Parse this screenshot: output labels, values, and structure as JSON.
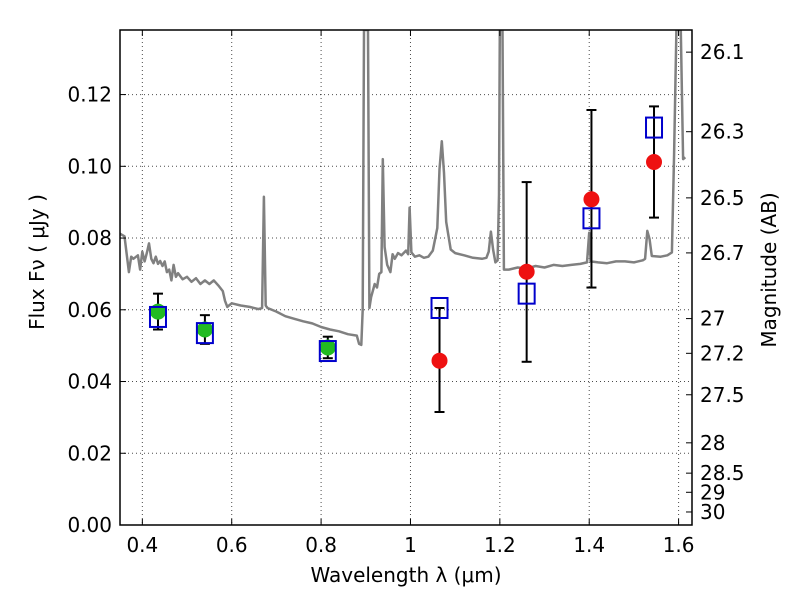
{
  "chart_data": {
    "type": "scatter",
    "xlabel": "Wavelength  λ (μm)",
    "ylabel": "Flux  Fν  ( μJy )",
    "y2label": "Magnitude (AB)",
    "xlim": [
      0.35,
      1.63
    ],
    "ylim": [
      0.0,
      0.138
    ],
    "grid": true,
    "x_ticks": [
      "0.4",
      "0.6",
      "0.8",
      "1",
      "1.2",
      "1.4",
      "1.6"
    ],
    "x_tick_values": [
      0.4,
      0.6,
      0.8,
      1.0,
      1.2,
      1.4,
      1.6
    ],
    "y_ticks": [
      "0.00",
      "0.02",
      "0.04",
      "0.06",
      "0.08",
      "0.10",
      "0.12"
    ],
    "y_tick_values": [
      0.0,
      0.02,
      0.04,
      0.06,
      0.08,
      0.1,
      0.12
    ],
    "y2_ticks": [
      "26.1",
      "26.3",
      "26.5",
      "26.7",
      "27",
      "27.2",
      "27.5",
      "28",
      "28.5",
      "29",
      "30"
    ],
    "y2_tick_values": [
      26.1,
      26.3,
      26.5,
      26.7,
      27.0,
      27.2,
      27.5,
      28.0,
      28.5,
      29.0,
      30.0
    ],
    "series": [
      {
        "marker": "circle",
        "color": "#22bb22",
        "x": [
          0.435,
          0.54,
          0.815
        ],
        "y": [
          0.0595,
          0.0545,
          0.0495
        ],
        "yerr_low": [
          0.0545,
          0.0505,
          0.0465
        ],
        "yerr_high": [
          0.0645,
          0.0585,
          0.0525
        ]
      },
      {
        "marker": "circle",
        "color": "#ee1111",
        "x": [
          1.065,
          1.26,
          1.405,
          1.545
        ],
        "y": [
          0.0458,
          0.0706,
          0.0908,
          0.1012
        ],
        "yerr_low": [
          0.0315,
          0.0455,
          0.0662,
          0.0857
        ],
        "yerr_high": [
          0.0605,
          0.0956,
          0.1157,
          0.1167
        ]
      },
      {
        "marker": "open-square",
        "color": "#0000cc",
        "x": [
          0.435,
          0.54,
          0.815,
          1.065,
          1.26,
          1.405,
          1.545
        ],
        "y": [
          0.058,
          0.0535,
          0.0485,
          0.0605,
          0.0645,
          0.0855,
          0.1108
        ]
      },
      {
        "type": "line",
        "color": "#808080",
        "points": [
          [
            0.35,
            0.0812
          ],
          [
            0.36,
            0.0805
          ],
          [
            0.365,
            0.0755
          ],
          [
            0.37,
            0.0705
          ],
          [
            0.375,
            0.0748
          ],
          [
            0.38,
            0.0742
          ],
          [
            0.39,
            0.0752
          ],
          [
            0.395,
            0.0712
          ],
          [
            0.4,
            0.0762
          ],
          [
            0.405,
            0.0735
          ],
          [
            0.41,
            0.0758
          ],
          [
            0.415,
            0.0785
          ],
          [
            0.42,
            0.0742
          ],
          [
            0.425,
            0.073
          ],
          [
            0.43,
            0.0748
          ],
          [
            0.435,
            0.0728
          ],
          [
            0.44,
            0.0736
          ],
          [
            0.445,
            0.0722
          ],
          [
            0.45,
            0.0735
          ],
          [
            0.455,
            0.0705
          ],
          [
            0.46,
            0.0712
          ],
          [
            0.465,
            0.0682
          ],
          [
            0.47,
            0.0725
          ],
          [
            0.475,
            0.0692
          ],
          [
            0.48,
            0.0702
          ],
          [
            0.49,
            0.0685
          ],
          [
            0.5,
            0.0692
          ],
          [
            0.51,
            0.0678
          ],
          [
            0.52,
            0.0688
          ],
          [
            0.53,
            0.0672
          ],
          [
            0.54,
            0.0682
          ],
          [
            0.55,
            0.0672
          ],
          [
            0.56,
            0.0682
          ],
          [
            0.57,
            0.0668
          ],
          [
            0.58,
            0.0652
          ],
          [
            0.585,
            0.0625
          ],
          [
            0.59,
            0.0608
          ],
          [
            0.6,
            0.0618
          ],
          [
            0.62,
            0.0612
          ],
          [
            0.64,
            0.0608
          ],
          [
            0.66,
            0.0602
          ],
          [
            0.668,
            0.0605
          ],
          [
            0.672,
            0.0915
          ],
          [
            0.676,
            0.0612
          ],
          [
            0.68,
            0.0605
          ],
          [
            0.7,
            0.0595
          ],
          [
            0.72,
            0.0582
          ],
          [
            0.74,
            0.0575
          ],
          [
            0.76,
            0.0568
          ],
          [
            0.78,
            0.0562
          ],
          [
            0.8,
            0.0552
          ],
          [
            0.82,
            0.0545
          ],
          [
            0.84,
            0.054
          ],
          [
            0.86,
            0.0532
          ],
          [
            0.88,
            0.0528
          ],
          [
            0.885,
            0.0505
          ],
          [
            0.89,
            0.0502
          ],
          [
            0.893,
            0.06
          ],
          [
            0.896,
            0.138
          ],
          [
            0.905,
            0.138
          ],
          [
            0.908,
            0.0605
          ],
          [
            0.912,
            0.0635
          ],
          [
            0.92,
            0.0672
          ],
          [
            0.925,
            0.0662
          ],
          [
            0.93,
            0.07
          ],
          [
            0.935,
            0.0705
          ],
          [
            0.938,
            0.102
          ],
          [
            0.942,
            0.0775
          ],
          [
            0.948,
            0.0725
          ],
          [
            0.955,
            0.0705
          ],
          [
            0.96,
            0.0755
          ],
          [
            0.965,
            0.0742
          ],
          [
            0.972,
            0.0758
          ],
          [
            0.98,
            0.0752
          ],
          [
            0.99,
            0.0765
          ],
          [
            0.995,
            0.0755
          ],
          [
            0.998,
            0.0885
          ],
          [
            1.002,
            0.076
          ],
          [
            1.01,
            0.0748
          ],
          [
            1.02,
            0.0752
          ],
          [
            1.03,
            0.0745
          ],
          [
            1.04,
            0.0748
          ],
          [
            1.05,
            0.0765
          ],
          [
            1.06,
            0.0828
          ],
          [
            1.065,
            0.0992
          ],
          [
            1.07,
            0.107
          ],
          [
            1.075,
            0.0982
          ],
          [
            1.08,
            0.0845
          ],
          [
            1.09,
            0.0768
          ],
          [
            1.1,
            0.0758
          ],
          [
            1.12,
            0.0752
          ],
          [
            1.14,
            0.0745
          ],
          [
            1.16,
            0.0742
          ],
          [
            1.17,
            0.0745
          ],
          [
            1.175,
            0.0762
          ],
          [
            1.18,
            0.0818
          ],
          [
            1.185,
            0.0768
          ],
          [
            1.19,
            0.0732
          ],
          [
            1.195,
            0.0738
          ],
          [
            1.198,
            0.092
          ],
          [
            1.2,
            0.138
          ],
          [
            1.206,
            0.138
          ],
          [
            1.209,
            0.0712
          ],
          [
            1.22,
            0.0712
          ],
          [
            1.24,
            0.0718
          ],
          [
            1.26,
            0.0715
          ],
          [
            1.28,
            0.0722
          ],
          [
            1.3,
            0.0718
          ],
          [
            1.32,
            0.0725
          ],
          [
            1.34,
            0.0722
          ],
          [
            1.36,
            0.0725
          ],
          [
            1.38,
            0.0728
          ],
          [
            1.395,
            0.0732
          ],
          [
            1.4,
            0.0815
          ],
          [
            1.403,
            0.0735
          ],
          [
            1.42,
            0.0732
          ],
          [
            1.44,
            0.073
          ],
          [
            1.46,
            0.0735
          ],
          [
            1.48,
            0.0735
          ],
          [
            1.5,
            0.0732
          ],
          [
            1.52,
            0.0738
          ],
          [
            1.525,
            0.0742
          ],
          [
            1.53,
            0.082
          ],
          [
            1.535,
            0.0798
          ],
          [
            1.54,
            0.075
          ],
          [
            1.56,
            0.0748
          ],
          [
            1.575,
            0.0752
          ],
          [
            1.585,
            0.076
          ],
          [
            1.59,
            0.1035
          ],
          [
            1.595,
            0.138
          ],
          [
            1.605,
            0.138
          ],
          [
            1.61,
            0.102
          ],
          [
            1.615,
            0.1025
          ]
        ]
      }
    ]
  }
}
